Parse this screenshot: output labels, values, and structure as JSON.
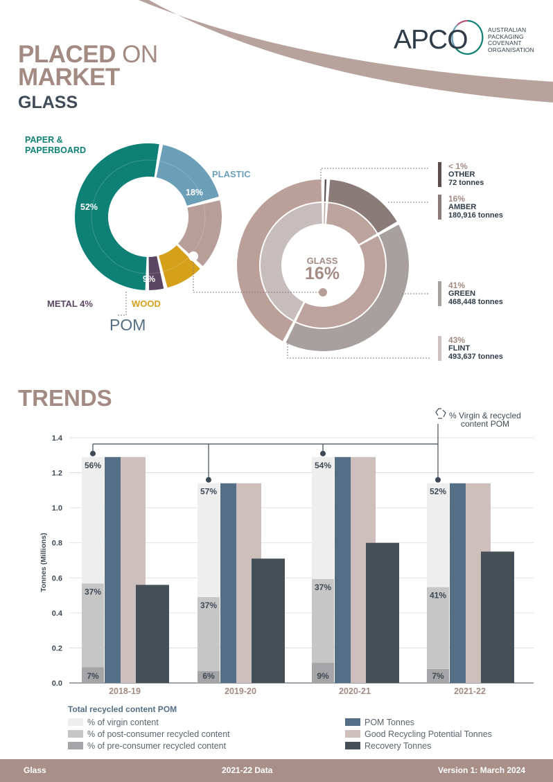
{
  "header": {
    "title_bold_1": "PLACED",
    "title_light_1": "ON",
    "title_bold_2": "MARKET",
    "subtitle": "GLASS"
  },
  "logo": {
    "name": "APCO",
    "line1": "AUSTRALIAN",
    "line2": "PACKAGING",
    "line3": "COVENANT",
    "line4": "ORGANISATION"
  },
  "pom_donut": {
    "label": "POM",
    "segments": [
      {
        "name": "PAPER & PAPERBOARD",
        "name_line1": "PAPER &",
        "name_line2": "PAPERBOARD",
        "pct": "52%",
        "value": 52,
        "color": "#0e8075"
      },
      {
        "name": "PLASTIC",
        "pct": "18%",
        "value": 18,
        "color": "#6b9fb8"
      },
      {
        "name": "GLASS",
        "pct": "16%",
        "value": 16,
        "color": "#b89e98"
      },
      {
        "name": "WOOD",
        "pct": "9%",
        "value": 9,
        "color": "#d5a11a"
      },
      {
        "name": "METAL",
        "pct": "4%",
        "value": 4,
        "color": "#5a4662"
      }
    ],
    "metal_label": "METAL 4%"
  },
  "glass_donut": {
    "center_label": "GLASS",
    "center_value": "16%",
    "segments": [
      {
        "pct": "< 1%",
        "name": "OTHER",
        "tonnes": "72 tonnes",
        "value": 1,
        "color": "#5e4f4f"
      },
      {
        "pct": "16%",
        "name": "AMBER",
        "tonnes": "180,916 tonnes",
        "value": 16,
        "color": "#8a7a78"
      },
      {
        "pct": "41%",
        "name": "GREEN",
        "tonnes": "468,448 tonnes",
        "value": 41,
        "color": "#a7a09f"
      },
      {
        "pct": "43%",
        "name": "FLINT",
        "tonnes": "493,637 tonnes",
        "value": 43,
        "color": "#cfc3c1"
      }
    ]
  },
  "trends": {
    "title": "TRENDS",
    "annotation_line1": "% Virgin & recycled",
    "annotation_line2": "content POM"
  },
  "chart_data": {
    "type": "bar",
    "title": "",
    "ylabel": "Tonnes (Millions)",
    "ylim": [
      0,
      1.4
    ],
    "yticks": [
      "0.0",
      "0.2",
      "0.4",
      "0.6",
      "0.8",
      "1.0",
      "1.2",
      "1.4"
    ],
    "categories": [
      "2018-19",
      "2019-20",
      "2020-21",
      "2021-22"
    ],
    "stacked_recycled_content": {
      "legend_title": "Total recycled content POM",
      "virgin_pct": [
        "56%",
        "57%",
        "54%",
        "52%"
      ],
      "post_consumer_pct": [
        "37%",
        "37%",
        "37%",
        "41%"
      ],
      "pre_consumer_pct": [
        "7%",
        "6%",
        "9%",
        "7%"
      ],
      "virgin_values": [
        56,
        57,
        54,
        52
      ],
      "post_consumer_values": [
        37,
        37,
        37,
        41
      ],
      "pre_consumer_values": [
        7,
        6,
        9,
        7
      ]
    },
    "series": [
      {
        "name": "POM Tonnes",
        "values": [
          1.29,
          1.14,
          1.29,
          1.14
        ],
        "color": "#546e86"
      },
      {
        "name": "Good Recycling Potential Tonnes",
        "values": [
          1.29,
          1.14,
          1.29,
          1.14
        ],
        "color": "#cdbfbc"
      },
      {
        "name": "Recovery Tonnes",
        "values": [
          0.56,
          0.71,
          0.8,
          0.75
        ],
        "color": "#444f58"
      }
    ],
    "legend": [
      {
        "label": "% of virgin content",
        "color": "#eeeeef"
      },
      {
        "label": "% of post-consumer recycled content",
        "color": "#c6c6c7"
      },
      {
        "label": "% of pre-consumer recycled content",
        "color": "#a5a5a7"
      },
      {
        "label": "POM Tonnes",
        "color": "#546e86"
      },
      {
        "label": "Good Recycling Potential Tonnes",
        "color": "#cdbfbc"
      },
      {
        "label": "Recovery Tonnes",
        "color": "#444f58"
      }
    ]
  },
  "footer": {
    "left": "Glass",
    "center": "2021-22 Data",
    "right": "Version 1: March 2024"
  }
}
